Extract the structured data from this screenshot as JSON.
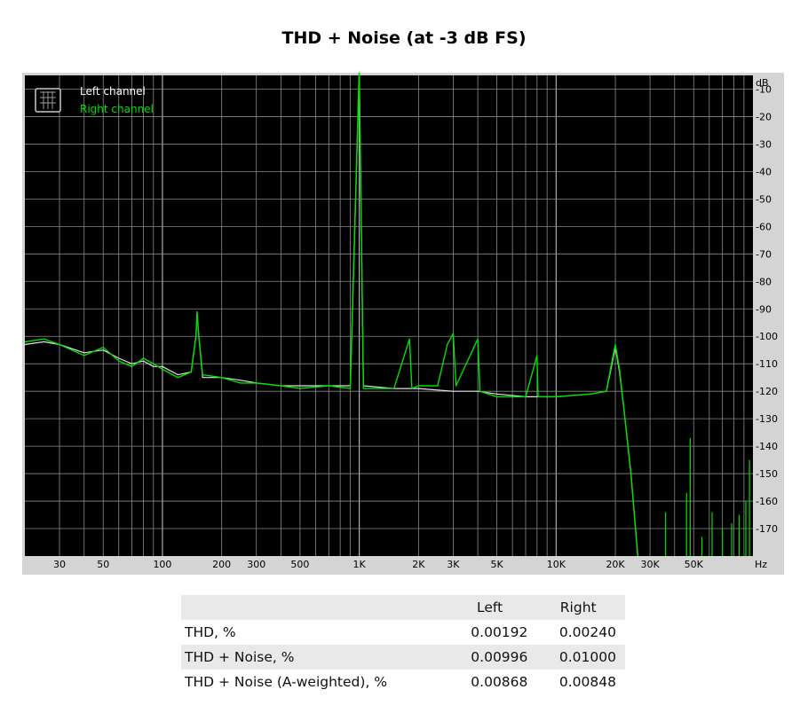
{
  "title": "THD + Noise (at -3 dB FS)",
  "chart_data": {
    "type": "line",
    "title": "THD + Noise (at -3 dB FS)",
    "x_scale": "log",
    "xlim": [
      20,
      100000
    ],
    "ylim": [
      -180,
      -5
    ],
    "x_unit": "Hz",
    "y_unit": "dB",
    "x_ticks": [
      {
        "value": 30,
        "label": "30"
      },
      {
        "value": 50,
        "label": "50"
      },
      {
        "value": 100,
        "label": "100"
      },
      {
        "value": 200,
        "label": "200"
      },
      {
        "value": 300,
        "label": "300"
      },
      {
        "value": 500,
        "label": "500"
      },
      {
        "value": 1000,
        "label": "1K"
      },
      {
        "value": 2000,
        "label": "2K"
      },
      {
        "value": 3000,
        "label": "3K"
      },
      {
        "value": 5000,
        "label": "5K"
      },
      {
        "value": 10000,
        "label": "10K"
      },
      {
        "value": 20000,
        "label": "20K"
      },
      {
        "value": 30000,
        "label": "30K"
      },
      {
        "value": 50000,
        "label": "50K"
      }
    ],
    "y_ticks": [
      {
        "value": -10,
        "label": "-10"
      },
      {
        "value": -20,
        "label": "-20"
      },
      {
        "value": -30,
        "label": "-30"
      },
      {
        "value": -40,
        "label": "-40"
      },
      {
        "value": -50,
        "label": "-50"
      },
      {
        "value": -60,
        "label": "-60"
      },
      {
        "value": -70,
        "label": "-70"
      },
      {
        "value": -80,
        "label": "-80"
      },
      {
        "value": -90,
        "label": "-90"
      },
      {
        "value": -100,
        "label": "-100"
      },
      {
        "value": -110,
        "label": "-110"
      },
      {
        "value": -120,
        "label": "-120"
      },
      {
        "value": -130,
        "label": "-130"
      },
      {
        "value": -140,
        "label": "-140"
      },
      {
        "value": -150,
        "label": "-150"
      },
      {
        "value": -160,
        "label": "-160"
      },
      {
        "value": -170,
        "label": "-170"
      }
    ],
    "grid": true,
    "legend_position": "top-left",
    "series": [
      {
        "name": "Left channel",
        "color": "#e0e0e0",
        "points": [
          [
            20,
            -103
          ],
          [
            25,
            -102
          ],
          [
            30,
            -103
          ],
          [
            40,
            -106
          ],
          [
            50,
            -105
          ],
          [
            60,
            -108
          ],
          [
            70,
            -110
          ],
          [
            80,
            -109
          ],
          [
            90,
            -111
          ],
          [
            100,
            -111
          ],
          [
            120,
            -114
          ],
          [
            140,
            -113
          ],
          [
            148,
            -100
          ],
          [
            150,
            -92
          ],
          [
            153,
            -100
          ],
          [
            160,
            -115
          ],
          [
            200,
            -115
          ],
          [
            250,
            -116
          ],
          [
            300,
            -117
          ],
          [
            400,
            -118
          ],
          [
            500,
            -118
          ],
          [
            700,
            -118
          ],
          [
            900,
            -118
          ],
          [
            1000,
            -4
          ],
          [
            1050,
            -118
          ],
          [
            1500,
            -119
          ],
          [
            2000,
            -119
          ],
          [
            3000,
            -120
          ],
          [
            4000,
            -120
          ],
          [
            5000,
            -121
          ],
          [
            7000,
            -122
          ],
          [
            10000,
            -122
          ],
          [
            15000,
            -121
          ],
          [
            18000,
            -120
          ],
          [
            19000,
            -112
          ],
          [
            20000,
            -104
          ],
          [
            21000,
            -113
          ],
          [
            22000,
            -125
          ],
          [
            24000,
            -150
          ],
          [
            26000,
            -180
          ]
        ]
      },
      {
        "name": "Right channel",
        "color": "#00e000",
        "points": [
          [
            20,
            -102
          ],
          [
            25,
            -101
          ],
          [
            30,
            -103
          ],
          [
            40,
            -107
          ],
          [
            50,
            -104
          ],
          [
            60,
            -109
          ],
          [
            70,
            -111
          ],
          [
            80,
            -108
          ],
          [
            90,
            -110
          ],
          [
            100,
            -112
          ],
          [
            120,
            -115
          ],
          [
            140,
            -113
          ],
          [
            148,
            -100
          ],
          [
            150,
            -91
          ],
          [
            153,
            -100
          ],
          [
            160,
            -114
          ],
          [
            200,
            -115
          ],
          [
            250,
            -117
          ],
          [
            300,
            -117
          ],
          [
            400,
            -118
          ],
          [
            500,
            -119
          ],
          [
            700,
            -118
          ],
          [
            900,
            -119
          ],
          [
            1000,
            -2
          ],
          [
            1050,
            -119
          ],
          [
            1500,
            -119
          ],
          [
            1800,
            -101
          ],
          [
            1850,
            -119
          ],
          [
            2000,
            -118
          ],
          [
            2500,
            -118
          ],
          [
            2800,
            -103
          ],
          [
            3000,
            -99
          ],
          [
            3100,
            -118
          ],
          [
            4000,
            -101
          ],
          [
            4100,
            -120
          ],
          [
            5000,
            -122
          ],
          [
            7000,
            -122
          ],
          [
            8000,
            -107
          ],
          [
            8100,
            -122
          ],
          [
            10000,
            -122
          ],
          [
            15000,
            -121
          ],
          [
            18000,
            -120
          ],
          [
            19000,
            -111
          ],
          [
            20000,
            -103
          ],
          [
            21000,
            -112
          ],
          [
            22000,
            -125
          ],
          [
            24000,
            -150
          ],
          [
            26000,
            -180
          ]
        ]
      }
    ],
    "spurs_right": [
      [
        36000,
        -164
      ],
      [
        46000,
        -157
      ],
      [
        48000,
        -137
      ],
      [
        55000,
        -173
      ],
      [
        62000,
        -164
      ],
      [
        70000,
        -170
      ],
      [
        78000,
        -168
      ],
      [
        85000,
        -165
      ],
      [
        92000,
        -160
      ],
      [
        96000,
        -145
      ]
    ]
  },
  "stats": {
    "headers": [
      "",
      "Left",
      "Right"
    ],
    "rows": [
      {
        "label": "THD, %",
        "left": "0.00192",
        "right": "0.00240"
      },
      {
        "label": "THD + Noise, %",
        "left": "0.00996",
        "right": "0.01000"
      },
      {
        "label": "THD + Noise (A-weighted), %",
        "left": "0.00868",
        "right": "0.00848"
      }
    ]
  }
}
